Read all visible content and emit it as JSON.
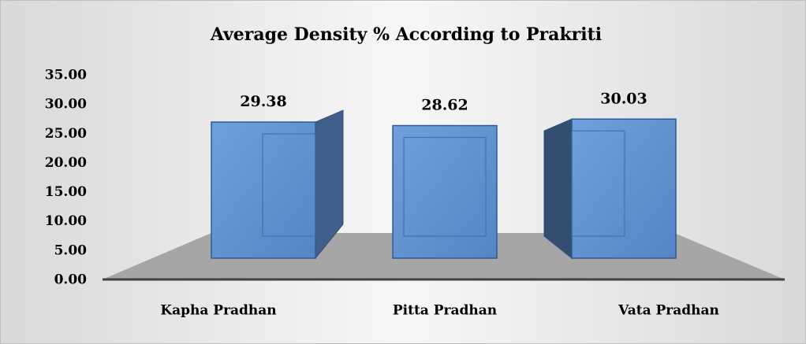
{
  "chart_data": {
    "type": "bar3d",
    "title": "Average Density % According to Prakriti",
    "categories": [
      "Kapha Pradhan",
      "Pitta Pradhan",
      "Vata Pradhan"
    ],
    "values": [
      29.38,
      28.62,
      30.03
    ],
    "color": "#5b8fd0",
    "ylim": [
      0,
      35
    ],
    "yticks": [
      {
        "value": 0,
        "label": "0.00"
      },
      {
        "value": 5,
        "label": "5.00"
      },
      {
        "value": 10,
        "label": "10.00"
      },
      {
        "value": 15,
        "label": "15.00"
      },
      {
        "value": 20,
        "label": "20.00"
      },
      {
        "value": 25,
        "label": "25.00"
      },
      {
        "value": 30,
        "label": "30.00"
      },
      {
        "value": 35,
        "label": "35.00"
      }
    ]
  }
}
